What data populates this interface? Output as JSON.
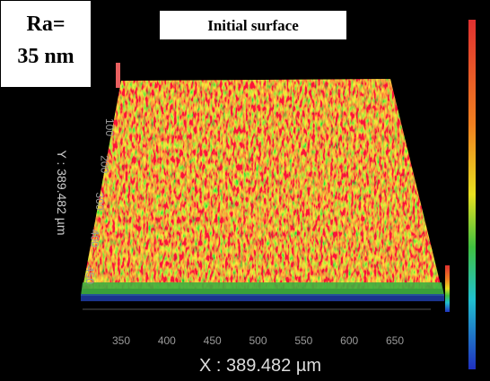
{
  "badge": {
    "lines": [
      "Ra=",
      "35 nm"
    ]
  },
  "title": "Initial surface",
  "x_axis": {
    "label": "X : 389.482 µm",
    "ticks": [
      350,
      400,
      450,
      500,
      550,
      600,
      650
    ]
  },
  "y_axis": {
    "label": "Y : 389.482 µm",
    "ticks": [
      100,
      200,
      300,
      400,
      450
    ]
  }
}
